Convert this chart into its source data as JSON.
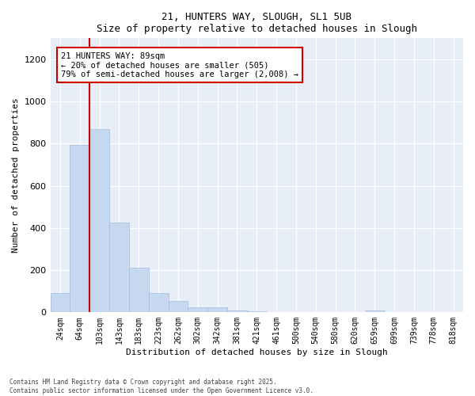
{
  "title1": "21, HUNTERS WAY, SLOUGH, SL1 5UB",
  "title2": "Size of property relative to detached houses in Slough",
  "xlabel": "Distribution of detached houses by size in Slough",
  "ylabel": "Number of detached properties",
  "categories": [
    "24sqm",
    "64sqm",
    "103sqm",
    "143sqm",
    "183sqm",
    "223sqm",
    "262sqm",
    "302sqm",
    "342sqm",
    "381sqm",
    "421sqm",
    "461sqm",
    "500sqm",
    "540sqm",
    "580sqm",
    "620sqm",
    "659sqm",
    "699sqm",
    "739sqm",
    "778sqm",
    "818sqm"
  ],
  "values": [
    90,
    795,
    870,
    425,
    210,
    93,
    53,
    22,
    22,
    10,
    5,
    2,
    0,
    0,
    0,
    0,
    8,
    0,
    0,
    0,
    0
  ],
  "bar_color": "#c5d8f0",
  "bar_edge_color": "#a0bedd",
  "vline_x_index": 1.5,
  "vline_color": "#cc0000",
  "annotation_text": "21 HUNTERS WAY: 89sqm\n← 20% of detached houses are smaller (505)\n79% of semi-detached houses are larger (2,008) →",
  "annotation_box_color": "#cc0000",
  "ylim": [
    0,
    1300
  ],
  "yticks": [
    0,
    200,
    400,
    600,
    800,
    1000,
    1200
  ],
  "background_color": "#e8eef8",
  "grid_color": "#ffffff",
  "footer1": "Contains HM Land Registry data © Crown copyright and database right 2025.",
  "footer2": "Contains public sector information licensed under the Open Government Licence v3.0."
}
